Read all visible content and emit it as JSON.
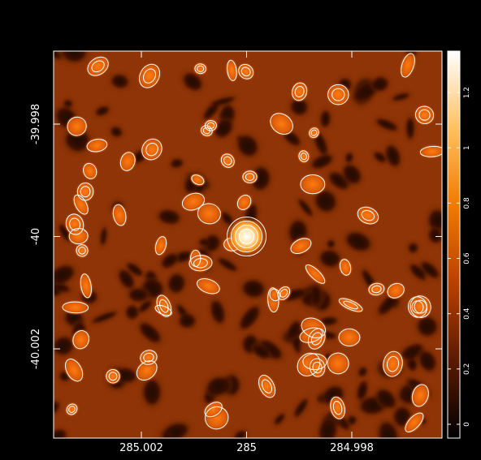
{
  "chart_data": {
    "type": "heatmap",
    "title": "",
    "xlabel": "",
    "ylabel": "",
    "colormap": "heat (black-red-orange-yellow-white)",
    "contour_color": "#ffffff",
    "x_axis": {
      "direction": "decreasing",
      "ticks": [
        {
          "value": 285.002,
          "label": "285.002"
        },
        {
          "value": 285.0,
          "label": "285"
        },
        {
          "value": 284.998,
          "label": "284.998"
        }
      ]
    },
    "y_axis": {
      "ticks": [
        {
          "value": -39.998,
          "label": "-39.998"
        },
        {
          "value": -40.0,
          "label": "-40"
        },
        {
          "value": -40.002,
          "label": "-40.002"
        }
      ]
    },
    "colorbar": {
      "range": [
        -0.05,
        1.35
      ],
      "ticks": [
        {
          "value": 0,
          "label": "0"
        },
        {
          "value": 0.2,
          "label": "0.2"
        },
        {
          "value": 0.4,
          "label": "0.4"
        },
        {
          "value": 0.6,
          "label": "0.6"
        },
        {
          "value": 0.8,
          "label": "0.8"
        },
        {
          "value": 1,
          "label": "1"
        },
        {
          "value": 1.2,
          "label": "1.2"
        }
      ]
    },
    "bright_source": {
      "x": 285.0,
      "y": -40.0,
      "peak": 1.3
    }
  }
}
